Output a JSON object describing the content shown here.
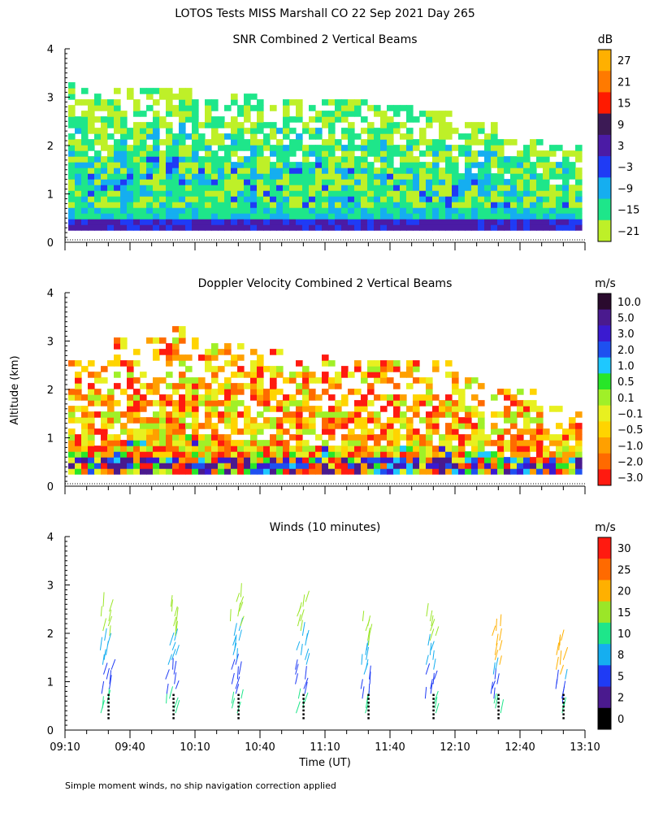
{
  "page_title": "LOTOS Tests MISS Marshall CO  22 Sep 2021 Day 265",
  "ylabel": "Altitude (km)",
  "xlabel": "Time (UT)",
  "footnote": "Simple moment winds, no ship navigation correction applied",
  "x_ticks": [
    "09:10",
    "09:40",
    "10:10",
    "10:40",
    "11:10",
    "11:40",
    "12:10",
    "12:40",
    "13:10"
  ],
  "y_ticks": [
    "0",
    "1",
    "2",
    "3",
    "4"
  ],
  "chart_data": [
    {
      "type": "heatmap",
      "title": "SNR Combined 2 Vertical Beams",
      "unit": "dB",
      "xlim": [
        "09:10",
        "13:10"
      ],
      "ylim": [
        0,
        4
      ],
      "colorbar_labels": [
        "27",
        "21",
        "15",
        "9",
        "3",
        "−3",
        "−9",
        "−15",
        "−21"
      ],
      "colorbar_colors": [
        "#ffb000",
        "#ff7a00",
        "#ff1a00",
        "#3c1a55",
        "#4b1ba5",
        "#1f3bf5",
        "#15aef0",
        "#1ee68a",
        "#bef028"
      ],
      "max_altitude_km": [
        3.2,
        3.1,
        3.1,
        3.0,
        3.0,
        2.9,
        2.9,
        2.8,
        2.7,
        2.4,
        2.1,
        2.0
      ]
    },
    {
      "type": "heatmap",
      "title": "Doppler Velocity Combined 2 Vertical Beams",
      "unit": "m/s",
      "xlim": [
        "09:10",
        "13:10"
      ],
      "ylim": [
        0,
        4
      ],
      "colorbar_labels": [
        "10.0",
        "5.0",
        "3.0",
        "2.0",
        "1.0",
        "0.5",
        "0.1",
        "−0.1",
        "−0.5",
        "−1.0",
        "−2.0",
        "−3.0"
      ],
      "colorbar_colors": [
        "#2a0a2e",
        "#4a1a8e",
        "#3a1ad0",
        "#1e50f0",
        "#1ec8ff",
        "#28e628",
        "#a0f028",
        "#e8f020",
        "#ffd400",
        "#ffa000",
        "#ff6a00",
        "#ff1a10"
      ],
      "max_altitude_km": [
        2.6,
        3.0,
        3.2,
        2.9,
        2.8,
        2.7,
        2.5,
        2.6,
        2.5,
        2.2,
        1.9,
        1.6
      ]
    },
    {
      "type": "scatter",
      "title": "Winds (10 minutes)",
      "unit": "m/s",
      "xlim": [
        "09:10",
        "13:10"
      ],
      "ylim": [
        0,
        4
      ],
      "colorbar_labels": [
        "30",
        "25",
        "20",
        "15",
        "10",
        "8",
        "5",
        "2",
        "0"
      ],
      "colorbar_colors": [
        "#ff1a10",
        "#ff6a00",
        "#ffb000",
        "#9be628",
        "#1ee68a",
        "#15aef0",
        "#1f3bf5",
        "#4a1a8e",
        "#000000"
      ],
      "profile_times": [
        "09:30",
        "10:00",
        "10:30",
        "11:00",
        "11:30",
        "12:00",
        "12:30",
        "13:00"
      ],
      "profile_top_km": [
        2.6,
        2.6,
        2.8,
        2.7,
        2.3,
        2.4,
        2.2,
        1.9
      ]
    }
  ]
}
